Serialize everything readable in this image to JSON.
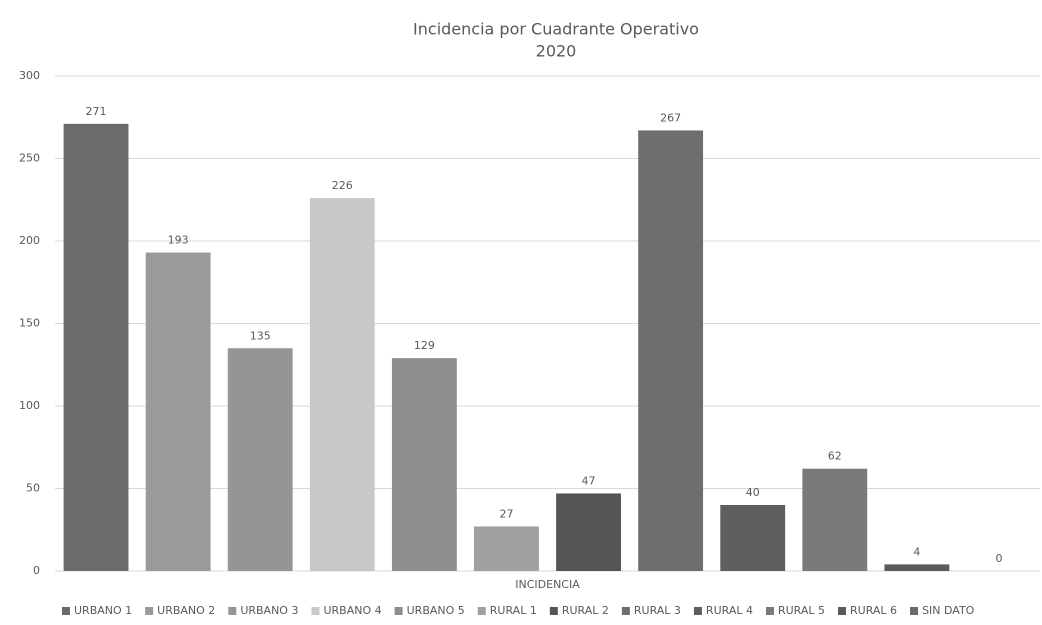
{
  "chart_data": {
    "type": "bar",
    "title": "Incidencia por Cuadrante Operativo",
    "subtitle": "2020",
    "categories": [
      "INCIDENCIA"
    ],
    "series": [
      {
        "name": "URBANO 1",
        "color": "#6b6b6e",
        "values": [
          271
        ]
      },
      {
        "name": "URBANO 2",
        "color": "#9a9a9c",
        "values": [
          193
        ]
      },
      {
        "name": "URBANO 3",
        "color": "#959597",
        "values": [
          135
        ]
      },
      {
        "name": "URBANO 4",
        "color": "#c8c8c9",
        "values": [
          226
        ]
      },
      {
        "name": "URBANO 5",
        "color": "#8e8e90",
        "values": [
          129
        ]
      },
      {
        "name": "RURAL 1",
        "color": "#a0a0a2",
        "values": [
          27
        ]
      },
      {
        "name": "RURAL 2",
        "color": "#555557",
        "values": [
          47
        ]
      },
      {
        "name": "RURAL 3",
        "color": "#6e6e71",
        "values": [
          267
        ]
      },
      {
        "name": "RURAL 4",
        "color": "#5f5f62",
        "values": [
          40
        ]
      },
      {
        "name": "RURAL 5",
        "color": "#7a7a7c",
        "values": [
          62
        ]
      },
      {
        "name": "RURAL 6",
        "color": "#5a5a5c",
        "values": [
          4
        ]
      },
      {
        "name": "SIN DATO",
        "color": "#6a6a6c",
        "values": [
          0
        ]
      }
    ],
    "ylim": [
      0,
      300
    ],
    "yticks": [
      0,
      50,
      100,
      150,
      200,
      250,
      300
    ],
    "grid": true,
    "legend": "bottom"
  }
}
